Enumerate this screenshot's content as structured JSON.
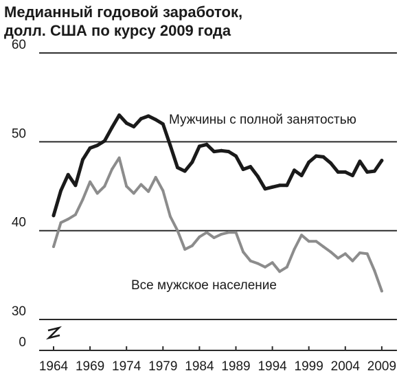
{
  "title_line1": "Медианный годовой заработок,",
  "title_line2": "долл. США по курсу 2009 года",
  "chart_data": {
    "type": "line",
    "title": "Медианный годовой заработок, долл. США по курсу 2009 года",
    "xlabel": "",
    "ylabel": "",
    "x_tick_labels": [
      "1964",
      "1969",
      "1974",
      "1979",
      "1984",
      "1989",
      "1994",
      "1999",
      "2004",
      "2009"
    ],
    "y_tick_labels": [
      "0",
      "30",
      "40",
      "50",
      "60"
    ],
    "ylim": [
      30,
      60
    ],
    "axis_break": true,
    "grid": true,
    "x": [
      1964,
      1965,
      1966,
      1967,
      1968,
      1969,
      1970,
      1971,
      1972,
      1973,
      1974,
      1975,
      1976,
      1977,
      1978,
      1979,
      1980,
      1981,
      1982,
      1983,
      1984,
      1985,
      1986,
      1987,
      1988,
      1989,
      1990,
      1991,
      1992,
      1993,
      1994,
      1995,
      1996,
      1997,
      1998,
      1999,
      2000,
      2001,
      2002,
      2003,
      2004,
      2005,
      2006,
      2007,
      2008,
      2009
    ],
    "series": [
      {
        "name": "Мужчины с полной занятостью",
        "color": "#1a1a1a",
        "values": [
          41.7,
          44.5,
          46.3,
          45.1,
          48.0,
          49.3,
          49.6,
          50.1,
          51.6,
          53.0,
          52.1,
          51.7,
          52.6,
          52.9,
          52.5,
          52.0,
          49.6,
          47.1,
          46.7,
          47.7,
          49.5,
          49.7,
          48.9,
          49.0,
          48.9,
          48.4,
          46.9,
          47.2,
          46.1,
          44.7,
          44.9,
          45.1,
          45.1,
          46.8,
          46.2,
          47.7,
          48.4,
          48.3,
          47.6,
          46.6,
          46.6,
          46.2,
          47.8,
          46.6,
          46.7,
          47.9
        ]
      },
      {
        "name": "Все мужское население",
        "color": "#8c8c8c",
        "values": [
          38.2,
          40.9,
          41.3,
          41.8,
          43.5,
          45.5,
          44.2,
          45.0,
          46.9,
          48.2,
          45.0,
          44.2,
          45.2,
          44.4,
          46.0,
          44.5,
          41.6,
          40.0,
          37.9,
          38.3,
          39.3,
          39.8,
          39.2,
          39.6,
          39.8,
          39.8,
          37.6,
          36.6,
          36.3,
          35.9,
          36.4,
          35.4,
          35.9,
          37.9,
          39.5,
          38.8,
          38.8,
          38.2,
          37.6,
          36.9,
          37.4,
          36.6,
          37.5,
          37.4,
          35.5,
          33.2
        ]
      }
    ]
  }
}
